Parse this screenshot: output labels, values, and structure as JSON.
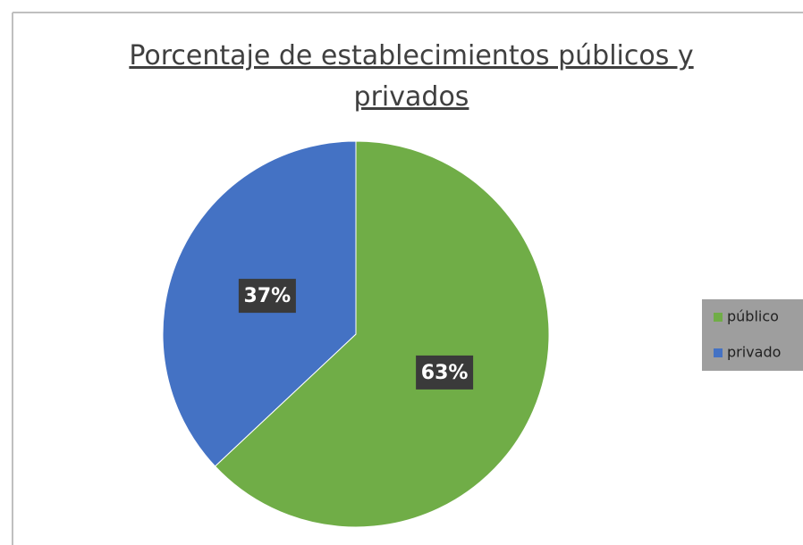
{
  "chart_data": {
    "type": "pie",
    "title": "Porcentaje de establecimientos públicos y privados",
    "categories": [
      "público",
      "privado"
    ],
    "values": [
      63,
      37
    ],
    "value_labels": [
      "63%",
      "37%"
    ],
    "colors": [
      "#70ad47",
      "#4472c4"
    ],
    "legend": "right"
  }
}
